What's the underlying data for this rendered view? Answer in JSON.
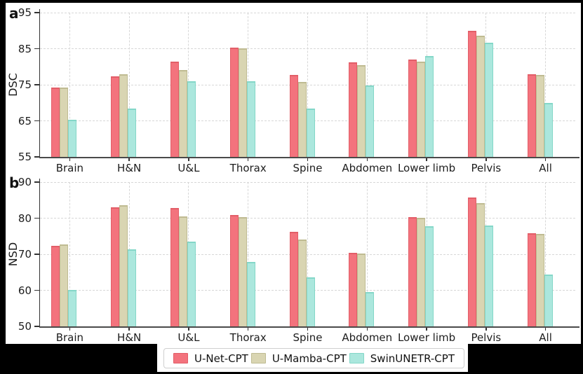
{
  "figure": {
    "background": "#000000",
    "plot_background": "#ffffff",
    "grid_color": "#d7d7d7",
    "axis_color": "#3a3a3a",
    "text_color": "#1d1d1d"
  },
  "legend": {
    "position": "bottom-center",
    "items": [
      {
        "label": "U-Net-CPT",
        "color": "#f3737d",
        "edge": "#e25e68"
      },
      {
        "label": "U-Mamba-CPT",
        "color": "#d9d5b2",
        "edge": "#bfbb92"
      },
      {
        "label": "SwinUNETR-CPT",
        "color": "#abe7dd",
        "edge": "#84d7c8"
      }
    ]
  },
  "chart_data": [
    {
      "type": "bar",
      "panel_label": "a",
      "title": "",
      "xlabel": "",
      "ylabel": "DSC",
      "ylim": [
        55,
        95
      ],
      "yticks": [
        55,
        65,
        75,
        85,
        95
      ],
      "grid": true,
      "categories": [
        "Brain",
        "H&N",
        "U&L",
        "Thorax",
        "Spine",
        "Abdomen",
        "Lower limb",
        "Pelvis",
        "All"
      ],
      "series": [
        {
          "name": "U-Net-CPT",
          "values": [
            74.2,
            77.4,
            81.5,
            85.3,
            77.7,
            81.2,
            81.9,
            89.9,
            78.0
          ]
        },
        {
          "name": "U-Mamba-CPT",
          "values": [
            74.2,
            78.0,
            79.1,
            85.1,
            75.8,
            80.4,
            81.5,
            88.5,
            77.7
          ]
        },
        {
          "name": "SwinUNETR-CPT",
          "values": [
            65.2,
            68.4,
            76.0,
            75.9,
            68.4,
            74.9,
            82.9,
            86.6,
            70.0
          ]
        }
      ]
    },
    {
      "type": "bar",
      "panel_label": "b",
      "title": "",
      "xlabel": "",
      "ylabel": "NSD",
      "ylim": [
        50,
        90
      ],
      "yticks": [
        50,
        60,
        70,
        80,
        90
      ],
      "grid": true,
      "categories": [
        "Brain",
        "H&N",
        "U&L",
        "Thorax",
        "Spine",
        "Abdomen",
        "Lower limb",
        "Pelvis",
        "All"
      ],
      "series": [
        {
          "name": "U-Net-CPT",
          "values": [
            72.3,
            83.0,
            82.8,
            80.8,
            76.2,
            70.4,
            80.2,
            85.7,
            75.8
          ]
        },
        {
          "name": "U-Mamba-CPT",
          "values": [
            72.8,
            83.5,
            80.4,
            80.2,
            74.0,
            70.2,
            80.1,
            84.1,
            75.6
          ]
        },
        {
          "name": "SwinUNETR-CPT",
          "values": [
            60.1,
            71.3,
            73.5,
            67.9,
            63.5,
            59.6,
            77.8,
            78.0,
            64.3
          ]
        }
      ]
    }
  ]
}
